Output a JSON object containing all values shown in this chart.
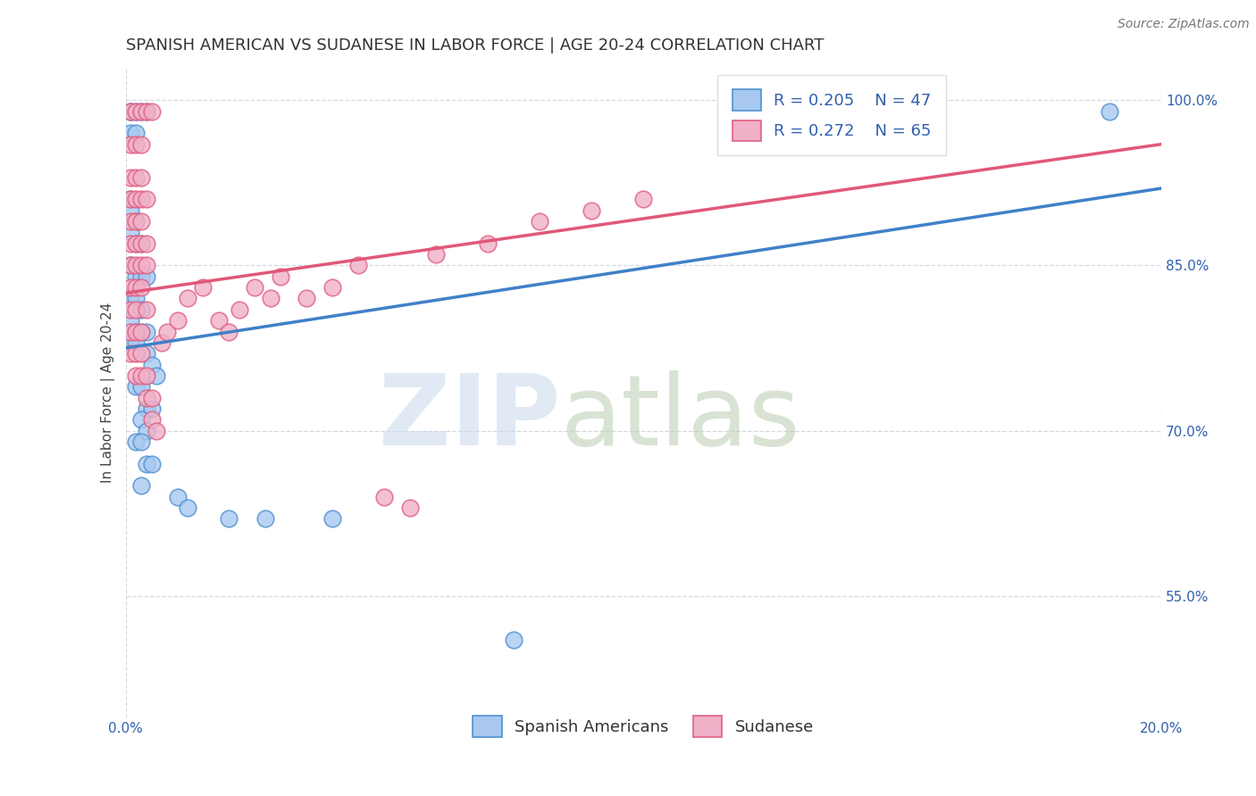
{
  "title": "SPANISH AMERICAN VS SUDANESE IN LABOR FORCE | AGE 20-24 CORRELATION CHART",
  "source": "Source: ZipAtlas.com",
  "ylabel": "In Labor Force | Age 20-24",
  "xlim": [
    0.0,
    0.2
  ],
  "ylim": [
    0.44,
    1.03
  ],
  "xticks": [
    0.0,
    0.2
  ],
  "xticklabels": [
    "0.0%",
    "20.0%"
  ],
  "yticks": [
    0.55,
    0.7,
    0.85,
    1.0
  ],
  "yticklabels": [
    "55.0%",
    "70.0%",
    "85.0%",
    "100.0%"
  ],
  "blue_fill": "#a8c8f0",
  "pink_fill": "#f0b0c8",
  "blue_edge": "#5090d0",
  "pink_edge": "#e06080",
  "blue_line": "#4080c8",
  "pink_line": "#e05878",
  "legend_text_color": "#3060b0",
  "title_fontsize": 13,
  "label_fontsize": 11,
  "tick_fontsize": 11,
  "legend_fontsize": 13,
  "blue_scatter": [
    [
      0.001,
      0.99
    ],
    [
      0.001,
      0.99
    ],
    [
      0.002,
      0.99
    ],
    [
      0.003,
      0.99
    ],
    [
      0.004,
      0.99
    ],
    [
      0.001,
      0.97
    ],
    [
      0.002,
      0.97
    ],
    [
      0.001,
      0.91
    ],
    [
      0.001,
      0.9
    ],
    [
      0.002,
      0.89
    ],
    [
      0.001,
      0.88
    ],
    [
      0.002,
      0.87
    ],
    [
      0.003,
      0.87
    ],
    [
      0.001,
      0.85
    ],
    [
      0.002,
      0.84
    ],
    [
      0.003,
      0.84
    ],
    [
      0.004,
      0.84
    ],
    [
      0.001,
      0.82
    ],
    [
      0.002,
      0.82
    ],
    [
      0.003,
      0.81
    ],
    [
      0.001,
      0.8
    ],
    [
      0.002,
      0.79
    ],
    [
      0.003,
      0.79
    ],
    [
      0.004,
      0.79
    ],
    [
      0.001,
      0.78
    ],
    [
      0.002,
      0.78
    ],
    [
      0.004,
      0.77
    ],
    [
      0.005,
      0.76
    ],
    [
      0.006,
      0.75
    ],
    [
      0.002,
      0.74
    ],
    [
      0.003,
      0.74
    ],
    [
      0.004,
      0.72
    ],
    [
      0.005,
      0.72
    ],
    [
      0.003,
      0.71
    ],
    [
      0.004,
      0.7
    ],
    [
      0.002,
      0.69
    ],
    [
      0.003,
      0.69
    ],
    [
      0.004,
      0.67
    ],
    [
      0.005,
      0.67
    ],
    [
      0.003,
      0.65
    ],
    [
      0.01,
      0.64
    ],
    [
      0.012,
      0.63
    ],
    [
      0.02,
      0.62
    ],
    [
      0.027,
      0.62
    ],
    [
      0.04,
      0.62
    ],
    [
      0.075,
      0.51
    ],
    [
      0.19,
      0.99
    ]
  ],
  "pink_scatter": [
    [
      0.001,
      0.99
    ],
    [
      0.002,
      0.99
    ],
    [
      0.003,
      0.99
    ],
    [
      0.004,
      0.99
    ],
    [
      0.005,
      0.99
    ],
    [
      0.001,
      0.96
    ],
    [
      0.002,
      0.96
    ],
    [
      0.003,
      0.96
    ],
    [
      0.001,
      0.93
    ],
    [
      0.002,
      0.93
    ],
    [
      0.003,
      0.93
    ],
    [
      0.001,
      0.91
    ],
    [
      0.002,
      0.91
    ],
    [
      0.003,
      0.91
    ],
    [
      0.004,
      0.91
    ],
    [
      0.001,
      0.89
    ],
    [
      0.002,
      0.89
    ],
    [
      0.003,
      0.89
    ],
    [
      0.001,
      0.87
    ],
    [
      0.002,
      0.87
    ],
    [
      0.003,
      0.87
    ],
    [
      0.004,
      0.87
    ],
    [
      0.001,
      0.85
    ],
    [
      0.002,
      0.85
    ],
    [
      0.003,
      0.85
    ],
    [
      0.004,
      0.85
    ],
    [
      0.001,
      0.83
    ],
    [
      0.002,
      0.83
    ],
    [
      0.003,
      0.83
    ],
    [
      0.001,
      0.81
    ],
    [
      0.002,
      0.81
    ],
    [
      0.004,
      0.81
    ],
    [
      0.001,
      0.79
    ],
    [
      0.002,
      0.79
    ],
    [
      0.003,
      0.79
    ],
    [
      0.001,
      0.77
    ],
    [
      0.002,
      0.77
    ],
    [
      0.003,
      0.77
    ],
    [
      0.002,
      0.75
    ],
    [
      0.003,
      0.75
    ],
    [
      0.004,
      0.75
    ],
    [
      0.004,
      0.73
    ],
    [
      0.005,
      0.73
    ],
    [
      0.005,
      0.71
    ],
    [
      0.006,
      0.7
    ],
    [
      0.007,
      0.78
    ],
    [
      0.008,
      0.79
    ],
    [
      0.01,
      0.8
    ],
    [
      0.012,
      0.82
    ],
    [
      0.015,
      0.83
    ],
    [
      0.018,
      0.8
    ],
    [
      0.02,
      0.79
    ],
    [
      0.022,
      0.81
    ],
    [
      0.025,
      0.83
    ],
    [
      0.028,
      0.82
    ],
    [
      0.03,
      0.84
    ],
    [
      0.035,
      0.82
    ],
    [
      0.04,
      0.83
    ],
    [
      0.045,
      0.85
    ],
    [
      0.05,
      0.64
    ],
    [
      0.055,
      0.63
    ],
    [
      0.06,
      0.86
    ],
    [
      0.07,
      0.87
    ],
    [
      0.08,
      0.89
    ],
    [
      0.09,
      0.9
    ],
    [
      0.1,
      0.91
    ]
  ]
}
